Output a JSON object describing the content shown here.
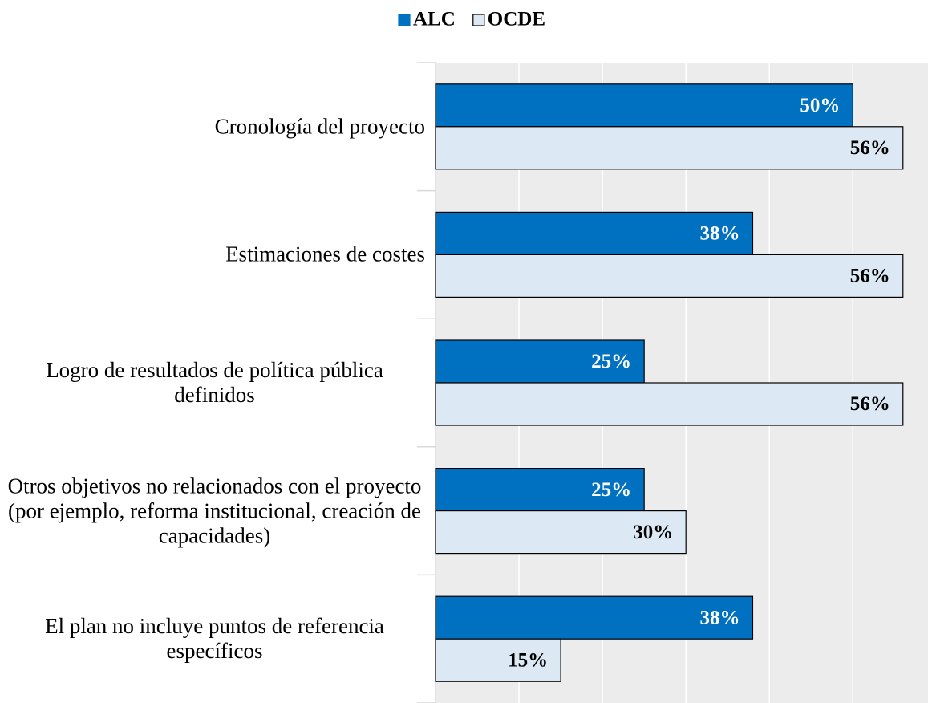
{
  "chart_data": {
    "type": "hbar",
    "categories": [
      "Cronología del proyecto",
      "Estimaciones de costes",
      "Logro de resultados de política pública definidos",
      "Otros objetivos no relacionados con el proyecto (por ejemplo, reforma institucional, creación de capacidades)",
      "El plan no incluye puntos de referencia específicos"
    ],
    "series": [
      {
        "name": "ALC",
        "color": "#0070c0",
        "values": [
          50,
          38,
          25,
          25,
          38
        ],
        "value_labels": [
          "50%",
          "38%",
          "25%",
          "25%",
          "38%"
        ]
      },
      {
        "name": "OCDE",
        "color": "#dce9f5",
        "values": [
          56,
          56,
          56,
          30,
          15
        ],
        "value_labels": [
          "56%",
          "56%",
          "56%",
          "30%",
          "15%"
        ]
      }
    ],
    "xlim": [
      0,
      59
    ],
    "xticks": [
      0,
      10,
      20,
      30,
      40,
      50
    ],
    "grid": true,
    "legend": "top"
  }
}
